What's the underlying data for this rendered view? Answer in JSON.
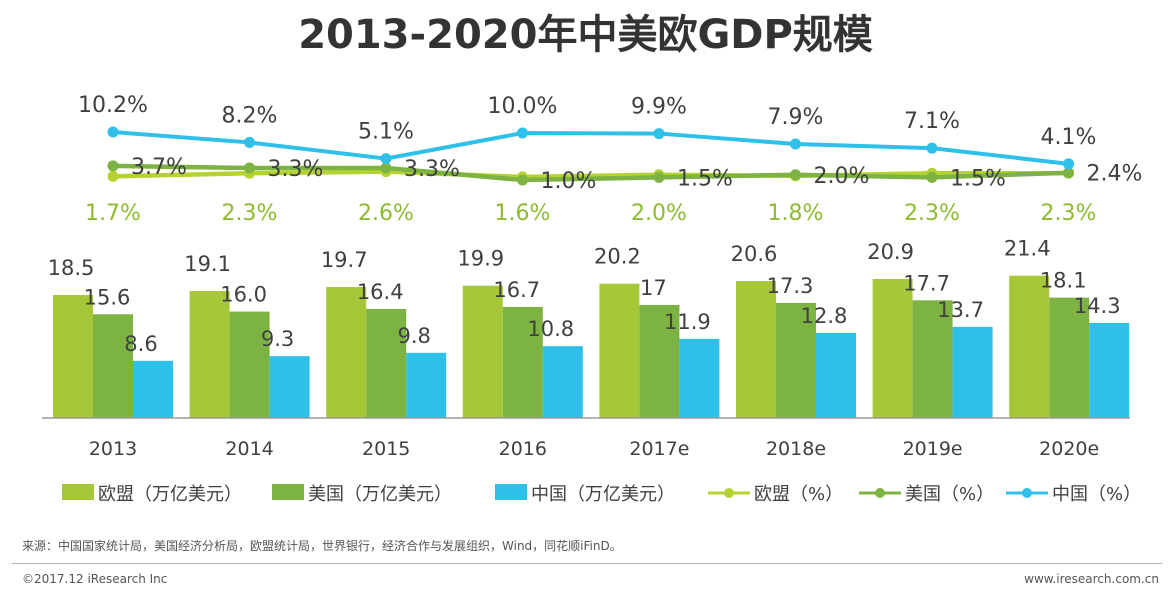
{
  "chart_data": {
    "type": "bar",
    "title": "2013-2020年中美欧GDP规模",
    "categories": [
      "2013",
      "2014",
      "2015",
      "2016",
      "2017e",
      "2018e",
      "2019e",
      "2020e"
    ],
    "series": [
      {
        "name": "欧盟（万亿美元）",
        "kind": "bar",
        "color": "#a6c737",
        "values": [
          18.5,
          19.1,
          19.7,
          19.9,
          20.2,
          20.6,
          20.9,
          21.4
        ],
        "labels": [
          "18.5",
          "19.1",
          "19.7",
          "19.9",
          "20.2",
          "20.6",
          "20.9",
          "21.4"
        ]
      },
      {
        "name": "美国（万亿美元）",
        "kind": "bar",
        "color": "#7db343",
        "values": [
          15.6,
          16.0,
          16.4,
          16.7,
          17,
          17.3,
          17.7,
          18.1
        ],
        "labels": [
          "15.6",
          "16.0",
          "16.4",
          "16.7",
          "17",
          "17.3",
          "17.7",
          "18.1"
        ]
      },
      {
        "name": "中国（万亿美元）",
        "kind": "bar",
        "color": "#2ec0e8",
        "values": [
          8.6,
          9.3,
          9.8,
          10.8,
          11.9,
          12.8,
          13.7,
          14.3
        ],
        "labels": [
          "8.6",
          "9.3",
          "9.8",
          "10.8",
          "11.9",
          "12.8",
          "13.7",
          "14.3"
        ]
      },
      {
        "name": "欧盟（%）",
        "kind": "line",
        "color": "#b5d330",
        "label_color": "#8dbb30",
        "values": [
          1.7,
          2.3,
          2.6,
          1.6,
          2.0,
          1.8,
          2.3,
          2.3
        ],
        "labels": [
          "1.7%",
          "2.3%",
          "2.6%",
          "1.6%",
          "2.0%",
          "1.8%",
          "2.3%",
          "2.3%"
        ]
      },
      {
        "name": "美国（%）",
        "kind": "line",
        "color": "#7db343",
        "label_color": "#404040",
        "values": [
          3.7,
          3.3,
          3.3,
          1.0,
          1.5,
          2.0,
          1.5,
          2.4
        ],
        "labels": [
          "3.7%",
          "3.3%",
          "3.3%",
          "1.0%",
          "1.5%",
          "2.0%",
          "1.5%",
          "2.4%"
        ]
      },
      {
        "name": "中国（%）",
        "kind": "line",
        "color": "#2ec0e8",
        "label_color": "#404040",
        "values": [
          10.2,
          8.2,
          5.1,
          10.0,
          9.9,
          7.9,
          7.1,
          4.1
        ],
        "labels": [
          "10.2%",
          "8.2%",
          "5.1%",
          "10.0%",
          "9.9%",
          "7.9%",
          "7.1%",
          "4.1%"
        ]
      }
    ],
    "legend": [
      "欧盟（万亿美元）",
      "美国（万亿美元）",
      "中国（万亿美元）",
      "欧盟（%）",
      "美国（%）",
      "中国（%）"
    ],
    "legend_position": "bottom",
    "grid": false
  },
  "footer": {
    "source": "来源：中国国家统计局，美国经济分析局，欧盟统计局，世界银行，经济合作与发展组织，Wind，同花顺iFinD。",
    "copyright": "©2017.12 iResearch Inc",
    "website": "www.iresearch.com.cn"
  }
}
